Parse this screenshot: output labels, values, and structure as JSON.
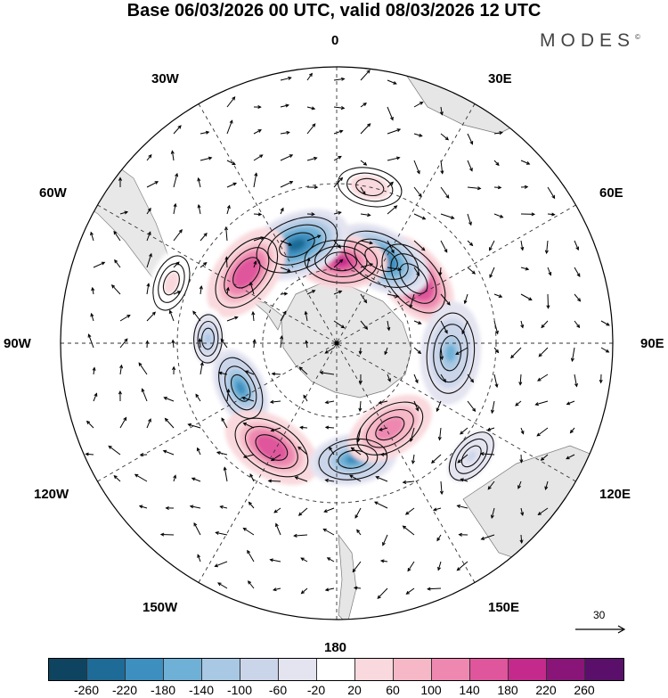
{
  "title": "Base 06/03/2026 00 UTC, valid 08/03/2026 12 UTC",
  "brand": "MODES",
  "brand_mark": "©",
  "longitude_labels": {
    "lon_0": "0",
    "lon_30e": "30E",
    "lon_60e": "60E",
    "lon_90e": "90E",
    "lon_120e": "120E",
    "lon_150e": "150E",
    "lon_180": "180",
    "lon_150w": "150W",
    "lon_120w": "120W",
    "lon_90w": "90W",
    "lon_60w": "60W",
    "lon_30w": "30W"
  },
  "reference_vector": {
    "value": "30"
  },
  "colorbar": {
    "ticks": [
      "-260",
      "-220",
      "-180",
      "-140",
      "-100",
      "-60",
      "-20",
      "20",
      "60",
      "100",
      "140",
      "180",
      "220",
      "260"
    ],
    "colors": [
      "#0f4461",
      "#1d6b96",
      "#3d8fbf",
      "#6fb0d6",
      "#a8c8e3",
      "#cbd5ea",
      "#e4e4f1",
      "#ffffff",
      "#f9d9dd",
      "#f6b8c7",
      "#ee88b0",
      "#e0569c",
      "#c42a8c",
      "#8a1579",
      "#5a0f6b"
    ]
  },
  "anomalies": [
    {
      "name": "anomaly-ne-positive",
      "value": 220,
      "lon": 50,
      "lat": 50,
      "size": 1.0
    },
    {
      "name": "anomaly-n-negative",
      "value": -240,
      "lon": 28,
      "lat": 52,
      "size": 1.0
    },
    {
      "name": "anomaly-n-positive",
      "value": 200,
      "lon": 3,
      "lat": 57,
      "size": 0.9
    },
    {
      "name": "anomaly-nw-negative",
      "value": -220,
      "lon": -22,
      "lat": 48,
      "size": 1.05
    },
    {
      "name": "anomaly-w-positive",
      "value": 180,
      "lon": -52,
      "lat": 45,
      "size": 1.0
    },
    {
      "name": "anomaly-w-negative",
      "value": -100,
      "lon": -88,
      "lat": 40,
      "size": 0.6
    },
    {
      "name": "anomaly-sw-negative",
      "value": -180,
      "lon": -115,
      "lat": 48,
      "size": 0.8
    },
    {
      "name": "anomaly-s-positive",
      "value": 180,
      "lon": -148,
      "lat": 42,
      "size": 1.0
    },
    {
      "name": "anomaly-s-negative",
      "value": -180,
      "lon": 172,
      "lat": 44,
      "size": 0.85
    },
    {
      "name": "anomaly-se-positive",
      "value": 140,
      "lon": 148,
      "lat": 50,
      "size": 0.9
    },
    {
      "name": "anomaly-e-negative",
      "value": -140,
      "lon": 95,
      "lat": 45,
      "size": 1.0
    },
    {
      "name": "anomaly-far-se-negative",
      "value": -60,
      "lon": 130,
      "lat": 25,
      "size": 0.7
    },
    {
      "name": "anomaly-nne-positive",
      "value": 40,
      "lon": 12,
      "lat": 30,
      "size": 0.8
    },
    {
      "name": "anomaly-far-w-positive",
      "value": 30,
      "lon": -70,
      "lat": 25,
      "size": 0.7
    }
  ]
}
